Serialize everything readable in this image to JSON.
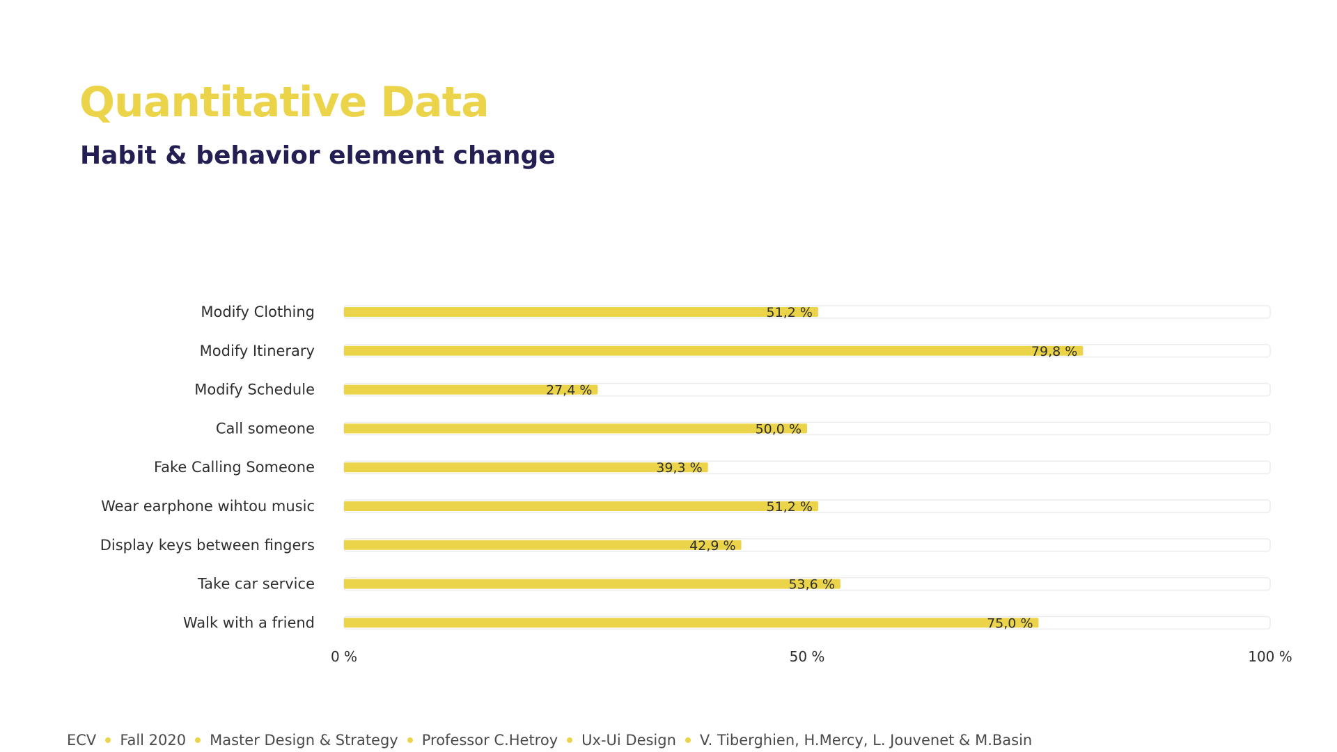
{
  "title": "Quantitative Data",
  "subtitle": "Habit & behavior element change",
  "colors": {
    "accent": "#ecd44a",
    "heading": "#231f52",
    "track_border": "#ececec",
    "text": "#2e2e2e"
  },
  "chart_data": {
    "type": "bar",
    "orientation": "horizontal",
    "categories": [
      "Modify Clothing",
      "Modify Itinerary",
      "Modify Schedule",
      "Call someone",
      "Fake Calling Someone",
      "Wear earphone wihtou music",
      "Display keys between fingers",
      "Take car service",
      "Walk with a friend"
    ],
    "values": [
      51.2,
      79.8,
      27.4,
      50.0,
      39.3,
      51.2,
      42.9,
      53.6,
      75.0
    ],
    "value_labels": [
      "51,2 %",
      "79,8 %",
      "27,4 %",
      "50,0 %",
      "39,3 %",
      "51,2 %",
      "42,9 %",
      "53,6 %",
      "75,0 %"
    ],
    "xlim": [
      0,
      100
    ],
    "x_ticks": [
      0,
      50,
      100
    ],
    "x_tick_labels": [
      "0 %",
      "50 %",
      "100 %"
    ],
    "grid": false,
    "legend": "none"
  },
  "footer": {
    "items": [
      "ECV",
      "Fall 2020",
      "Master Design & Strategy",
      "Professor C.Hetroy",
      "Ux-Ui Design",
      "V. Tiberghien, H.Mercy, L. Jouvenet & M.Basin"
    ]
  }
}
